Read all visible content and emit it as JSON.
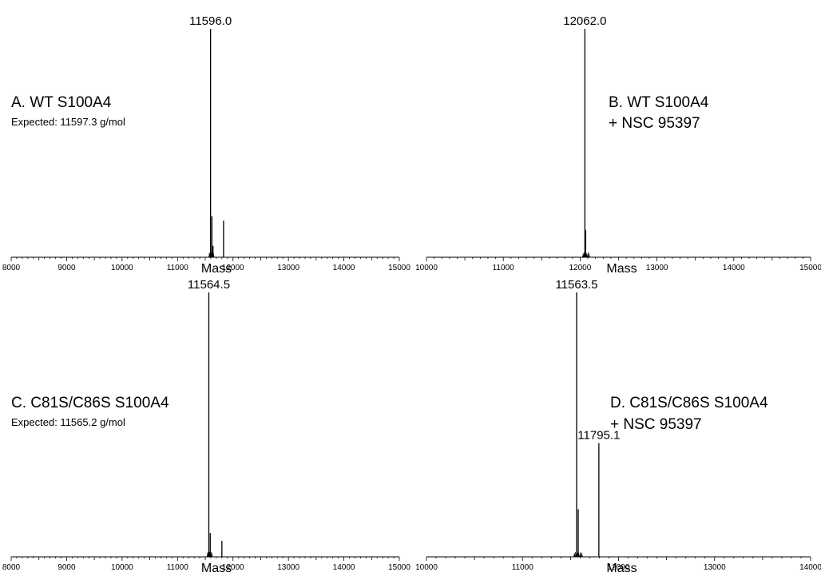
{
  "chart_data": [
    {
      "type": "line",
      "panel": "A",
      "title": "A. WT S100A4",
      "subtitle": "Expected:  11597.3 g/mol",
      "xlabel": "Mass",
      "ylabel": "",
      "xlim": [
        8000,
        15000
      ],
      "ylim": [
        0,
        1
      ],
      "xticks": [
        8000,
        9000,
        10000,
        11000,
        12000,
        13000,
        14000,
        15000
      ],
      "grid": false,
      "peaks": [
        {
          "x": 11596.0,
          "y": 1.0,
          "label": "11596.0"
        },
        {
          "x": 11620,
          "y": 0.18,
          "label": ""
        },
        {
          "x": 11640,
          "y": 0.05,
          "label": ""
        },
        {
          "x": 11830,
          "y": 0.16,
          "label": ""
        }
      ]
    },
    {
      "type": "line",
      "panel": "B",
      "title": "B. WT S100A4",
      "title_line2": "+ NSC 95397",
      "xlabel": "Mass",
      "ylabel": "",
      "xlim": [
        10000,
        15000
      ],
      "ylim": [
        0,
        1
      ],
      "xticks": [
        10000,
        11000,
        12000,
        13000,
        14000,
        15000
      ],
      "grid": false,
      "peaks": [
        {
          "x": 12062.0,
          "y": 1.0,
          "label": "12062.0"
        },
        {
          "x": 12072,
          "y": 0.12,
          "label": ""
        }
      ]
    },
    {
      "type": "line",
      "panel": "C",
      "title": "C. C81S/C86S S100A4",
      "subtitle": "Expected:  11565.2 g/mol",
      "xlabel": "Mass",
      "ylabel": "",
      "xlim": [
        8000,
        15000
      ],
      "ylim": [
        0,
        1
      ],
      "xticks": [
        8000,
        9000,
        10000,
        11000,
        12000,
        13000,
        14000,
        15000
      ],
      "grid": false,
      "peaks": [
        {
          "x": 11564.5,
          "y": 1.0,
          "label": "11564.5"
        },
        {
          "x": 11590,
          "y": 0.09,
          "label": ""
        },
        {
          "x": 11800,
          "y": 0.06,
          "label": ""
        }
      ]
    },
    {
      "type": "line",
      "panel": "D",
      "title": "D. C81S/C86S S100A4",
      "title_line2": "+ NSC 95397",
      "xlabel": "Mass",
      "ylabel": "",
      "xlim": [
        10000,
        14000
      ],
      "ylim": [
        0,
        1
      ],
      "xticks": [
        10000,
        11000,
        12000,
        13000,
        14000
      ],
      "grid": false,
      "peaks": [
        {
          "x": 11563.5,
          "y": 1.0,
          "label": "11563.5"
        },
        {
          "x": 11580,
          "y": 0.18,
          "label": ""
        },
        {
          "x": 11795.1,
          "y": 0.43,
          "label": "11795.1"
        }
      ]
    }
  ]
}
